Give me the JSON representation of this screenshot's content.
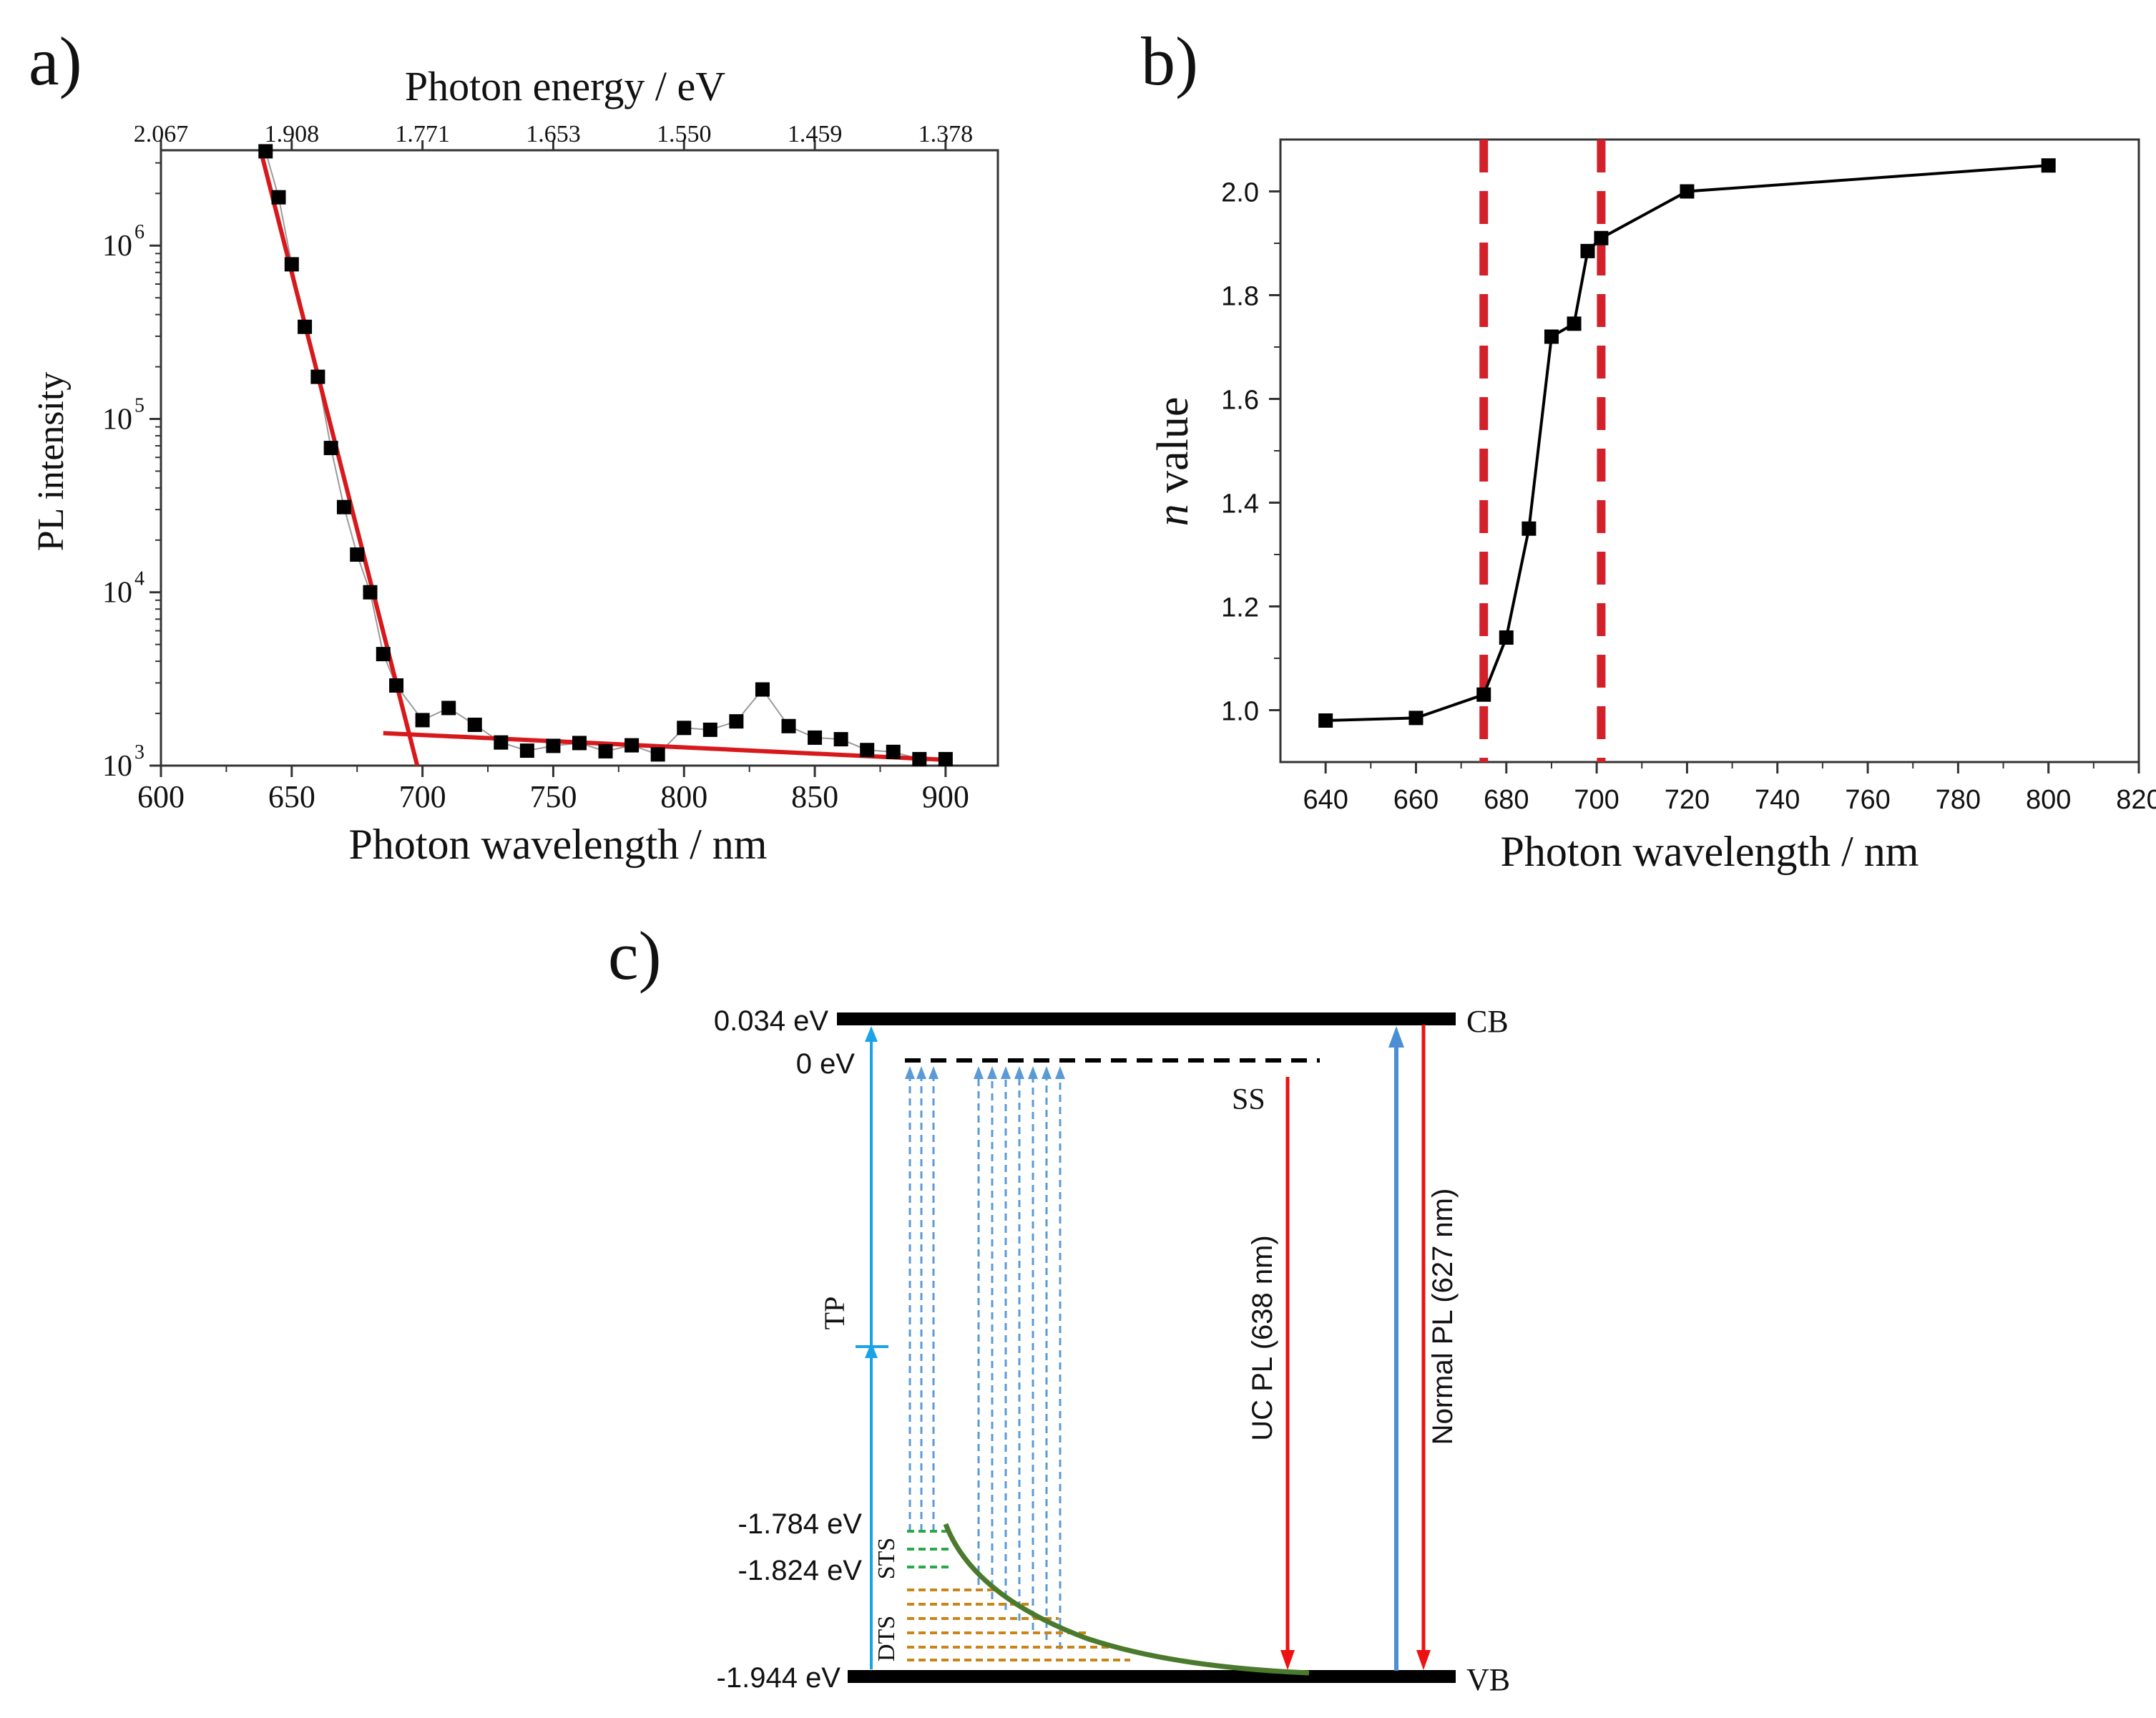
{
  "chart_data": [
    {
      "panel": "a)",
      "type": "scatter",
      "xlabel": "Photon wavelength / nm",
      "ylabel": "PL intensity",
      "top_xlabel": "Photon energy / eV",
      "xlim": [
        600,
        920
      ],
      "ylim_log10": [
        3,
        6.55
      ],
      "x_ticks": [
        "600",
        "650",
        "700",
        "750",
        "800",
        "850",
        "900"
      ],
      "x_tick_values": [
        600,
        650,
        700,
        750,
        800,
        850,
        900
      ],
      "y_ticks": [
        {
          "value": 3,
          "base": "10",
          "exp": "3"
        },
        {
          "value": 4,
          "base": "10",
          "exp": "4"
        },
        {
          "value": 5,
          "base": "10",
          "exp": "5"
        },
        {
          "value": 6,
          "base": "10",
          "exp": "6"
        }
      ],
      "top_ticks": [
        "2.067",
        "1.908",
        "1.771",
        "1.653",
        "1.550",
        "1.459",
        "1.378"
      ],
      "top_tick_values": [
        600,
        650,
        700,
        750,
        800,
        850,
        900
      ],
      "series": [
        {
          "name": "PL data",
          "x": [
            640,
            645,
            650,
            655,
            660,
            665,
            670,
            675,
            680,
            685,
            690,
            700,
            710,
            720,
            730,
            740,
            750,
            760,
            770,
            780,
            790,
            800,
            810,
            820,
            830,
            840,
            850,
            860,
            870,
            880,
            890,
            900
          ],
          "y": [
            3500000,
            1900000,
            780000,
            340000,
            175000,
            68000,
            31000,
            16500,
            10000,
            4400,
            2900,
            1830,
            2150,
            1720,
            1360,
            1220,
            1300,
            1350,
            1210,
            1310,
            1160,
            1650,
            1610,
            1800,
            2750,
            1690,
            1450,
            1420,
            1230,
            1200,
            1090,
            1090
          ]
        }
      ],
      "fits": [
        {
          "x": [
            638,
            698
          ],
          "y": [
            3600000,
            1000
          ]
        },
        {
          "x": [
            685,
            900
          ],
          "y": [
            1540,
            1080
          ]
        }
      ]
    },
    {
      "panel": "b)",
      "type": "line",
      "xlabel": "Photon wavelength / nm",
      "ylabel_italic": "n",
      "ylabel_rest": " value",
      "xlim": [
        630,
        820
      ],
      "ylim": [
        0.9,
        2.1
      ],
      "x_ticks": [
        640,
        660,
        680,
        700,
        720,
        740,
        760,
        780,
        800,
        820
      ],
      "y_ticks": [
        "1.0",
        "1.2",
        "1.4",
        "1.6",
        "1.8",
        "2.0"
      ],
      "y_tick_values": [
        1.0,
        1.2,
        1.4,
        1.6,
        1.8,
        2.0
      ],
      "series": [
        {
          "name": "n value",
          "x": [
            640,
            660,
            675,
            680,
            685,
            690,
            695,
            698,
            701,
            720,
            800
          ],
          "y": [
            0.98,
            0.985,
            1.03,
            1.14,
            1.35,
            1.72,
            1.745,
            1.885,
            1.91,
            2.0,
            2.05
          ]
        }
      ],
      "vlines": [
        675,
        701
      ]
    },
    {
      "panel": "c)",
      "type": "diagram",
      "levels": {
        "cb": "0.034 eV",
        "ss": "0 eV",
        "sts_top": "-1.784 eV",
        "sts_bottom": "-1.824 eV",
        "vb": "-1.944 eV"
      },
      "labels": {
        "cb": "CB",
        "vb": "VB",
        "ss": "SS",
        "tp": "TP",
        "sts": "STS",
        "dts": "DTS",
        "uc_pl": "UC PL (638 nm)",
        "normal_pl": "Normal PL (627 nm)"
      }
    }
  ]
}
